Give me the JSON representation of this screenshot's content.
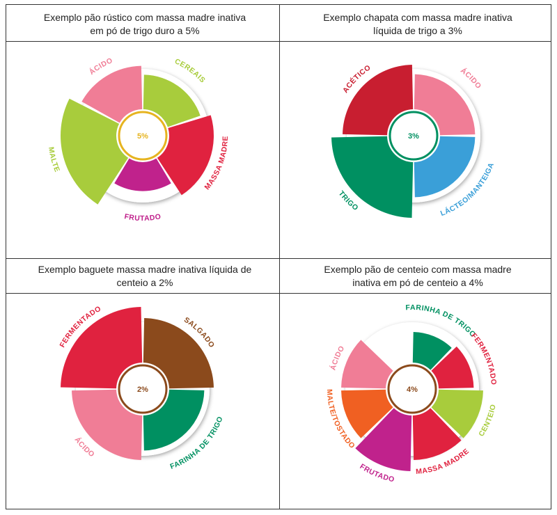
{
  "chart_data": [
    {
      "type": "radial-bar",
      "title": "Exemplo pão rústico com massa madre inativa\nem pó de trigo duro a 5%",
      "center_label": "5%",
      "center_color": "#e6b420",
      "start_angle": 0,
      "series": [
        {
          "name": "CEREAIS",
          "start": 0,
          "end": 72,
          "value": 0.62,
          "color": "#a8cc3c"
        },
        {
          "name": "MASSA MADRE",
          "start": 72,
          "end": 148,
          "value": 0.8,
          "color": "#e0223f"
        },
        {
          "name": "FRUTADO",
          "start": 148,
          "end": 212,
          "value": 0.52,
          "color": "#c0228c"
        },
        {
          "name": "MALTE",
          "start": 212,
          "end": 298,
          "value": 1.0,
          "color": "#a8cc3c"
        },
        {
          "name": "ÁCIDO",
          "start": 298,
          "end": 360,
          "value": 0.78,
          "color": "#f07d96"
        }
      ]
    },
    {
      "type": "radial-bar",
      "title": "Exemplo chapata com massa madre  inativa\nlíquida de trigo a 3%",
      "center_label": "3%",
      "center_color": "#009061",
      "start_angle": 0,
      "series": [
        {
          "name": "ÁCIDO",
          "start": 0,
          "end": 90,
          "value": 0.63,
          "color": "#f07d96"
        },
        {
          "name": "LÁCTEO/MANTEIGA",
          "start": 90,
          "end": 180,
          "value": 0.63,
          "color": "#3a9fd8"
        },
        {
          "name": "TRIGO",
          "start": 180,
          "end": 270,
          "value": 1.0,
          "color": "#009061"
        },
        {
          "name": "ACÉTICO",
          "start": 270,
          "end": 360,
          "value": 0.8,
          "color": "#c81e30"
        }
      ]
    },
    {
      "type": "radial-bar",
      "title": "Exemplo baguete massa madre inativa líquida de\ncenteio a 2%",
      "center_label": "2%",
      "center_color": "#8b4a1c",
      "start_angle": 0,
      "series": [
        {
          "name": "SALGADO",
          "start": 0,
          "end": 90,
          "value": 0.8,
          "color": "#8b4a1c"
        },
        {
          "name": "FARINHA DE TRIGO",
          "start": 90,
          "end": 180,
          "value": 0.63,
          "color": "#009061"
        },
        {
          "name": "ÁCIDO",
          "start": 180,
          "end": 270,
          "value": 0.8,
          "color": "#f07d96"
        },
        {
          "name": "FERMENTADO",
          "start": 270,
          "end": 360,
          "value": 1.0,
          "color": "#e0223f"
        }
      ]
    },
    {
      "type": "radial-bar",
      "title": "Exemplo pão de centeio com massa madre\ninativa em pó de centeio a 4%",
      "center_label": "4%",
      "center_color": "#8b4a1c",
      "start_angle": 0,
      "series": [
        {
          "name": "FARINHA DE TRIGO",
          "start": 0,
          "end": 45,
          "value": 0.55,
          "color": "#009061"
        },
        {
          "name": "FERMENTADO",
          "start": 45,
          "end": 90,
          "value": 0.63,
          "color": "#e0223f"
        },
        {
          "name": "CENTEIO",
          "start": 90,
          "end": 135,
          "value": 0.8,
          "color": "#a8cc3c"
        },
        {
          "name": "MASSA MADRE",
          "start": 135,
          "end": 180,
          "value": 0.8,
          "color": "#e0223f"
        },
        {
          "name": "FRUTADO",
          "start": 180,
          "end": 225,
          "value": 1.0,
          "color": "#c0228c"
        },
        {
          "name": "MALTE/TOSTADO",
          "start": 225,
          "end": 270,
          "value": 0.8,
          "color": "#f06022"
        },
        {
          "name": "ÁCIDO",
          "start": 270,
          "end": 315,
          "value": 0.8,
          "color": "#f07d96"
        },
        {
          "name": "",
          "start": 315,
          "end": 360,
          "value": 0.0,
          "color": "#ffffff"
        }
      ]
    }
  ]
}
